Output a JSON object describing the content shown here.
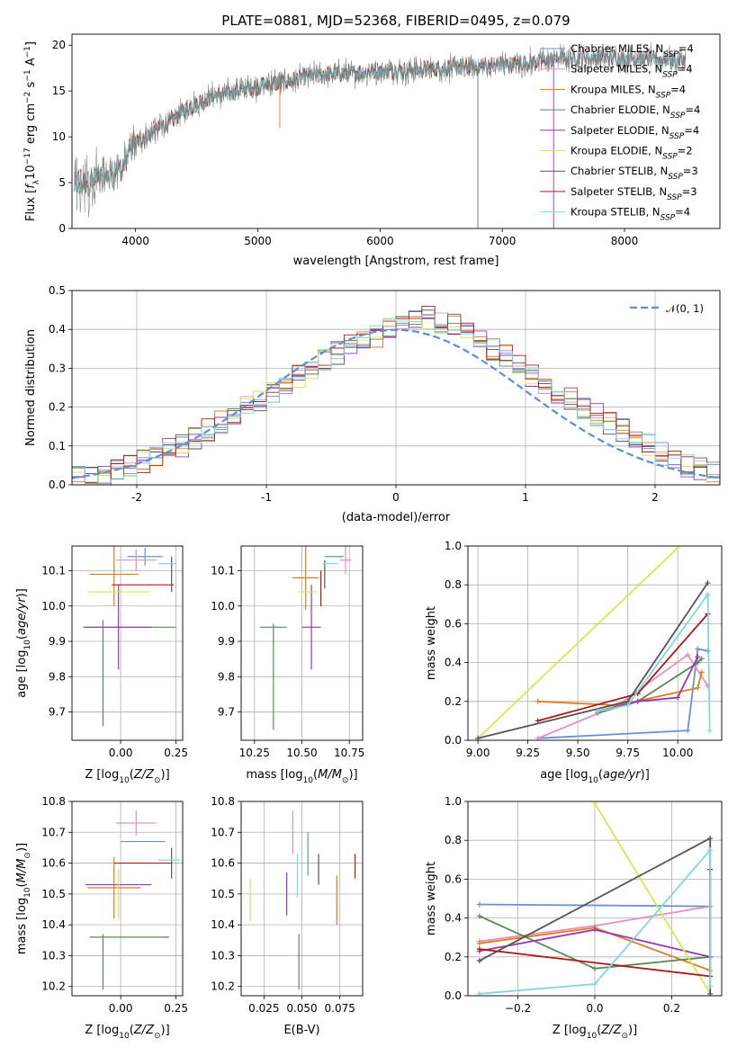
{
  "figure": {
    "title": "PLATE=0881, MJD=52368, FIBERID=0495, z=0.079",
    "colors": {
      "chabrier_miles": "#6a8fd8",
      "salpeter_miles": "#e68fbf",
      "kroupa_miles": "#e07b1a",
      "chabrier_elodie": "#5a8a5a",
      "salpeter_elodie": "#9a35b0",
      "kroupa_elodie": "#d8e84a",
      "chabrier_stelib": "#555555",
      "salpeter_stelib": "#b01818",
      "kroupa_stelib": "#7dd8e0",
      "normal_curve": "#5b8fd6"
    }
  },
  "chart_data": [
    {
      "id": "spectrum",
      "type": "line",
      "title": "PLATE=0881, MJD=52368, FIBERID=0495, z=0.079",
      "xlabel": "wavelength [Angstrom, rest frame]",
      "ylabel": "Flux [f_λ 10^-17 erg cm^-2 s^-1 A^-1]",
      "xlim": [
        3480,
        8780
      ],
      "ylim": [
        0,
        21.2
      ],
      "xticks": [
        4000,
        5000,
        6000,
        7000,
        8000
      ],
      "yticks": [
        0,
        5,
        10,
        15,
        20
      ],
      "legend_position": "top-right",
      "continuum": {
        "x": [
          3500,
          3600,
          3700,
          3800,
          3900,
          4000,
          4100,
          4200,
          4300,
          4400,
          4500,
          4600,
          4700,
          4800,
          4900,
          5000,
          5100,
          5200,
          5300,
          5400,
          5600,
          5800,
          6000,
          6200,
          6400,
          6600,
          6800,
          7000,
          7200,
          7400,
          7600,
          7800,
          8000,
          8200,
          8400
        ],
        "y": [
          4.5,
          5.0,
          5.6,
          6.0,
          6.8,
          9.3,
          10.2,
          11.0,
          11.8,
          12.9,
          13.6,
          14.3,
          14.6,
          14.9,
          15.3,
          15.5,
          15.8,
          15.9,
          16.2,
          16.6,
          16.9,
          17.0,
          17.2,
          17.2,
          17.4,
          17.6,
          17.6,
          17.9,
          18.0,
          18.4,
          18.6,
          18.7,
          18.6,
          18.5,
          18.3
        ]
      },
      "series": [
        {
          "name": "Chabrier MILES, N_SSP=4",
          "xmax": 7420
        },
        {
          "name": "Salpeter MILES, N_SSP=4",
          "xmax": 7420
        },
        {
          "name": "Kroupa MILES, N_SSP=4",
          "xmax": 7420
        },
        {
          "name": "Chabrier ELODIE, N_SSP=4",
          "xmax": 6800
        },
        {
          "name": "Salpeter ELODIE, N_SSP=4",
          "xmax": 6800
        },
        {
          "name": "Kroupa ELODIE, N_SSP=2",
          "xmax": 6800
        },
        {
          "name": "Chabrier STELIB, N_SSP=3",
          "xmax": 8780
        },
        {
          "name": "Salpeter STELIB, N_SSP=3",
          "xmax": 8780
        },
        {
          "name": "Kroupa STELIB, N_SSP=4",
          "xmax": 8780
        }
      ]
    },
    {
      "id": "residuals",
      "type": "histogram",
      "xlabel": "(data-model)/error",
      "ylabel": "Normed distribution",
      "xlim": [
        -2.5,
        2.5
      ],
      "ylim": [
        0,
        0.5
      ],
      "xticks": [
        -2,
        -1,
        0,
        1,
        2
      ],
      "yticks": [
        0.0,
        0.1,
        0.2,
        0.3,
        0.4,
        0.5
      ],
      "bin_edges_start": -2.5,
      "bin_width": 0.1,
      "reference_curve": {
        "name": "𝒩(0, 1)",
        "style": "dashed"
      },
      "base_values": [
        0.02,
        0.02,
        0.03,
        0.04,
        0.05,
        0.06,
        0.07,
        0.09,
        0.1,
        0.12,
        0.14,
        0.16,
        0.18,
        0.2,
        0.22,
        0.24,
        0.26,
        0.28,
        0.3,
        0.32,
        0.34,
        0.36,
        0.37,
        0.38,
        0.4,
        0.41,
        0.42,
        0.43,
        0.42,
        0.41,
        0.39,
        0.37,
        0.35,
        0.33,
        0.31,
        0.28,
        0.26,
        0.24,
        0.22,
        0.2,
        0.18,
        0.16,
        0.14,
        0.12,
        0.1,
        0.08,
        0.07,
        0.05,
        0.04,
        0.03
      ]
    },
    {
      "id": "z_vs_age",
      "type": "errorbar",
      "xlabel": "Z [log10(Z/Z☉)]",
      "ylabel": "age [log10(age/yr)]",
      "xlim": [
        -0.22,
        0.28
      ],
      "ylim": [
        9.62,
        10.17
      ],
      "xticks": [
        0.0,
        0.25
      ],
      "xtick_labels": [
        "0.00",
        "0.25"
      ],
      "yticks": [
        9.7,
        9.8,
        9.9,
        10.0,
        10.1
      ],
      "points": [
        {
          "series": 0,
          "x": 0.11,
          "y": 10.14,
          "xerr": 0.08,
          "yerr": 0.025
        },
        {
          "series": 1,
          "x": 0.07,
          "y": 10.13,
          "xerr": 0.09,
          "yerr": 0.03
        },
        {
          "series": 2,
          "x": -0.03,
          "y": 10.09,
          "xerr": 0.11,
          "yerr": 0.09
        },
        {
          "series": 3,
          "x": 0.04,
          "y": 9.94,
          "xerr": 0.21,
          "yerr": 0.0
        },
        {
          "series": 4,
          "x": -0.01,
          "y": 9.94,
          "xerr": 0.15,
          "yerr": 0.12
        },
        {
          "series": 5,
          "x": -0.01,
          "y": 10.04,
          "xerr": 0.14,
          "yerr": 0.0
        },
        {
          "series": 6,
          "x": 0.23,
          "y": 10.09,
          "xerr": 0.0,
          "yerr": 0.05
        },
        {
          "series": 7,
          "x": 0.1,
          "y": 10.06,
          "xerr": 0.14,
          "yerr": 0.0
        },
        {
          "series": 8,
          "x": 0.21,
          "y": 10.12,
          "xerr": 0.04,
          "yerr": 0.0
        },
        {
          "series": 3,
          "x": -0.08,
          "y": 9.81,
          "xerr": 0.0,
          "yerr": 0.15
        }
      ]
    },
    {
      "id": "mass_vs_age",
      "type": "errorbar",
      "xlabel": "mass [log10(M/M☉)]",
      "ylabel": "",
      "xlim": [
        10.18,
        10.82
      ],
      "ylim": [
        9.62,
        10.17
      ],
      "xticks": [
        10.25,
        10.5,
        10.75
      ],
      "xtick_labels": [
        "10.25",
        "10.50",
        "10.75"
      ],
      "yticks": [
        9.7,
        9.8,
        9.9,
        10.0,
        10.1
      ],
      "points": [
        {
          "series": 0,
          "x": 10.67,
          "y": 10.14,
          "xerr": 0.05,
          "yerr": 0.0
        },
        {
          "series": 1,
          "x": 10.73,
          "y": 10.13,
          "xerr": 0.03,
          "yerr": 0.04
        },
        {
          "series": 2,
          "x": 10.52,
          "y": 10.08,
          "xerr": 0.07,
          "yerr": 0.09
        },
        {
          "series": 3,
          "x": 10.35,
          "y": 9.94,
          "xerr": 0.07,
          "yerr": 0.0
        },
        {
          "series": 4,
          "x": 10.55,
          "y": 9.94,
          "xerr": 0.05,
          "yerr": 0.12
        },
        {
          "series": 5,
          "x": 10.53,
          "y": 10.04,
          "xerr": 0.05,
          "yerr": 0.0
        },
        {
          "series": 6,
          "x": 10.62,
          "y": 10.09,
          "xerr": 0.0,
          "yerr": 0.04
        },
        {
          "series": 7,
          "x": 10.6,
          "y": 10.05,
          "xerr": 0.0,
          "yerr": 0.05
        },
        {
          "series": 8,
          "x": 10.65,
          "y": 10.12,
          "xerr": 0.04,
          "yerr": 0.0
        },
        {
          "series": 3,
          "x": 10.35,
          "y": 9.8,
          "xerr": 0.0,
          "yerr": 0.15
        }
      ]
    },
    {
      "id": "age_vs_weight",
      "type": "line",
      "xlabel": "age [log10(age/yr)]",
      "ylabel": "mass weight",
      "xlim": [
        8.95,
        10.22
      ],
      "ylim": [
        0.0,
        1.0
      ],
      "xticks": [
        9.0,
        9.25,
        9.5,
        9.75,
        10.0
      ],
      "xtick_labels": [
        "9.00",
        "9.25",
        "9.50",
        "9.75",
        "10.00"
      ],
      "yticks": [
        0.0,
        0.2,
        0.4,
        0.6,
        0.8,
        1.0
      ],
      "series": [
        {
          "series": 0,
          "x": [
            9.3,
            10.05,
            10.1,
            10.15
          ],
          "y": [
            0.01,
            0.05,
            0.47,
            0.46
          ]
        },
        {
          "series": 1,
          "x": [
            9.3,
            9.7,
            10.05,
            10.15
          ],
          "y": [
            0.01,
            0.18,
            0.44,
            0.28
          ]
        },
        {
          "series": 2,
          "x": [
            9.3,
            9.7,
            10.1,
            10.12
          ],
          "y": [
            0.2,
            0.18,
            0.27,
            0.35
          ]
        },
        {
          "series": 3,
          "x": [
            9.6,
            9.8,
            10.1,
            10.12
          ],
          "y": [
            0.14,
            0.2,
            0.4,
            0.42
          ]
        },
        {
          "series": 4,
          "x": [
            9.6,
            9.8,
            10.0,
            10.1
          ],
          "y": [
            0.15,
            0.2,
            0.22,
            0.43
          ]
        },
        {
          "series": 5,
          "x": [
            9.0,
            10.0
          ],
          "y": [
            0.01,
            0.99
          ]
        },
        {
          "series": 6,
          "x": [
            9.0,
            9.75,
            10.15
          ],
          "y": [
            0.01,
            0.2,
            0.81
          ]
        },
        {
          "series": 7,
          "x": [
            9.3,
            9.8,
            10.15
          ],
          "y": [
            0.1,
            0.24,
            0.65
          ]
        },
        {
          "series": 8,
          "x": [
            9.6,
            9.75,
            10.15,
            10.16
          ],
          "y": [
            0.15,
            0.18,
            0.75,
            0.05
          ]
        }
      ]
    },
    {
      "id": "z_vs_mass",
      "type": "errorbar",
      "xlabel": "Z [log10(Z/Z☉)]",
      "ylabel": "mass [log10(M/M☉)]",
      "xlim": [
        -0.22,
        0.28
      ],
      "ylim": [
        10.17,
        10.8
      ],
      "xticks": [
        0.0,
        0.25
      ],
      "xtick_labels": [
        "0.00",
        "0.25"
      ],
      "yticks": [
        10.2,
        10.3,
        10.4,
        10.5,
        10.6,
        10.7,
        10.8
      ],
      "points": [
        {
          "series": 0,
          "x": 0.1,
          "y": 10.67,
          "xerr": 0.1,
          "yerr": 0.0
        },
        {
          "series": 1,
          "x": 0.07,
          "y": 10.73,
          "xerr": 0.09,
          "yerr": 0.04
        },
        {
          "series": 2,
          "x": -0.03,
          "y": 10.52,
          "xerr": 0.12,
          "yerr": 0.1
        },
        {
          "series": 3,
          "x": 0.04,
          "y": 10.36,
          "xerr": 0.18,
          "yerr": 0.0
        },
        {
          "series": 4,
          "x": -0.01,
          "y": 10.53,
          "xerr": 0.15,
          "yerr": 0.0
        },
        {
          "series": 5,
          "x": -0.01,
          "y": 10.5,
          "xerr": 0.0,
          "yerr": 0.08
        },
        {
          "series": 6,
          "x": 0.23,
          "y": 10.6,
          "xerr": 0.0,
          "yerr": 0.05
        },
        {
          "series": 7,
          "x": 0.1,
          "y": 10.6,
          "xerr": 0.13,
          "yerr": 0.0
        },
        {
          "series": 8,
          "x": 0.22,
          "y": 10.61,
          "xerr": 0.05,
          "yerr": 0.0
        },
        {
          "series": 3,
          "x": -0.08,
          "y": 10.28,
          "xerr": 0.0,
          "yerr": 0.09
        }
      ]
    },
    {
      "id": "ebv_vs_mass",
      "type": "errorbar",
      "xlabel": "E(B-V)",
      "ylabel": "",
      "xlim": [
        0.01,
        0.09
      ],
      "ylim": [
        10.17,
        10.8
      ],
      "xticks": [
        0.025,
        0.05,
        0.075
      ],
      "xtick_labels": [
        "0.025",
        "0.050",
        "0.075"
      ],
      "yticks": [
        10.2,
        10.3,
        10.4,
        10.5,
        10.6,
        10.7,
        10.8
      ],
      "points": [
        {
          "series": 5,
          "x": 0.016,
          "y": 10.48,
          "xerr": 0.0,
          "yerr": 0.07
        },
        {
          "series": 4,
          "x": 0.04,
          "y": 10.5,
          "xerr": 0.0,
          "yerr": 0.07
        },
        {
          "series": 1,
          "x": 0.044,
          "y": 10.7,
          "xerr": 0.0,
          "yerr": 0.07
        },
        {
          "series": 8,
          "x": 0.047,
          "y": 10.56,
          "xerr": 0.0,
          "yerr": 0.07
        },
        {
          "series": 3,
          "x": 0.048,
          "y": 10.28,
          "xerr": 0.0,
          "yerr": 0.09
        },
        {
          "series": 0,
          "x": 0.054,
          "y": 10.63,
          "xerr": 0.0,
          "yerr": 0.07
        },
        {
          "series": 6,
          "x": 0.061,
          "y": 10.58,
          "xerr": 0.0,
          "yerr": 0.05
        },
        {
          "series": 2,
          "x": 0.073,
          "y": 10.48,
          "xerr": 0.0,
          "yerr": 0.08
        },
        {
          "series": 7,
          "x": 0.085,
          "y": 10.59,
          "xerr": 0.0,
          "yerr": 0.04
        }
      ]
    },
    {
      "id": "z_vs_weight",
      "type": "line",
      "xlabel": "Z [log10(Z/Z☉)]",
      "ylabel": "mass weight",
      "xlim": [
        -0.33,
        0.33
      ],
      "ylim": [
        0.0,
        1.0
      ],
      "xticks": [
        -0.2,
        0.0,
        0.2
      ],
      "xtick_labels": [
        "−0.2",
        "0.0",
        "0.2"
      ],
      "yticks": [
        0.0,
        0.2,
        0.4,
        0.6,
        0.8,
        1.0
      ],
      "series": [
        {
          "series": 0,
          "x": [
            -0.3,
            0.3
          ],
          "y": [
            0.47,
            0.46
          ]
        },
        {
          "series": 1,
          "x": [
            -0.3,
            0.0,
            0.3
          ],
          "y": [
            0.28,
            0.36,
            0.46
          ]
        },
        {
          "series": 2,
          "x": [
            -0.3,
            0.0,
            0.3
          ],
          "y": [
            0.27,
            0.35,
            0.13
          ]
        },
        {
          "series": 3,
          "x": [
            -0.3,
            0.0,
            0.3
          ],
          "y": [
            0.41,
            0.14,
            0.2
          ]
        },
        {
          "series": 4,
          "x": [
            -0.3,
            0.0,
            0.3
          ],
          "y": [
            0.23,
            0.34,
            0.2
          ]
        },
        {
          "series": 5,
          "x": [
            0.0,
            0.3
          ],
          "y": [
            0.99,
            0.01
          ]
        },
        {
          "series": 6,
          "x": [
            -0.3,
            0.3,
            0.3
          ],
          "y": [
            0.18,
            0.81,
            0.01
          ]
        },
        {
          "series": 7,
          "x": [
            -0.3,
            0.3,
            0.3
          ],
          "y": [
            0.24,
            0.1,
            0.65
          ]
        },
        {
          "series": 8,
          "x": [
            -0.3,
            0.0,
            0.3,
            0.3
          ],
          "y": [
            0.01,
            0.06,
            0.75,
            0.05
          ]
        }
      ]
    }
  ]
}
